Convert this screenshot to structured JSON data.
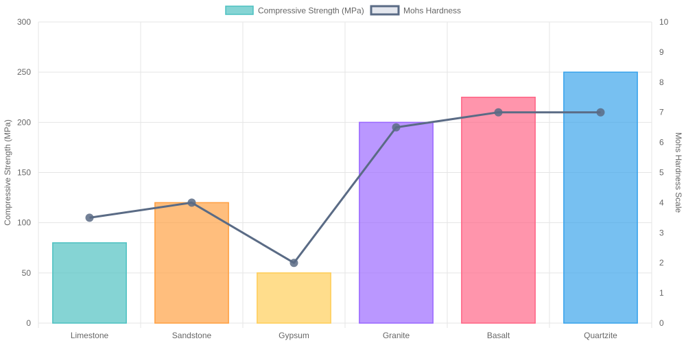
{
  "chart_data": {
    "type": "bar",
    "categories": [
      "Limestone",
      "Sandstone",
      "Gypsum",
      "Granite",
      "Basalt",
      "Quartzite"
    ],
    "series": [
      {
        "name": "Compressive Strength (MPa)",
        "type": "bar",
        "axis": "left",
        "values": [
          80,
          120,
          50,
          200,
          225,
          250
        ],
        "colors": [
          "#4bc0c0",
          "#ff9f40",
          "#ffcd56",
          "#9966ff",
          "#ff6384",
          "#36a2eb"
        ]
      },
      {
        "name": "Mohs Hardness",
        "type": "line",
        "axis": "right",
        "values": [
          3.5,
          4,
          2,
          6.5,
          7,
          7
        ],
        "color": "#5a6b85"
      }
    ],
    "ylabel": "Compressive Strength (MPa)",
    "y2label": "Mohs Hardness Scale",
    "xlabel": "",
    "ylim": [
      0,
      300
    ],
    "y2lim": [
      0,
      10
    ],
    "yticks": [
      0,
      50,
      100,
      150,
      200,
      250,
      300
    ],
    "y2ticks": [
      0,
      1,
      2,
      3,
      4,
      5,
      6,
      7,
      8,
      9,
      10
    ],
    "grid": true,
    "legend_position": "top-center"
  }
}
